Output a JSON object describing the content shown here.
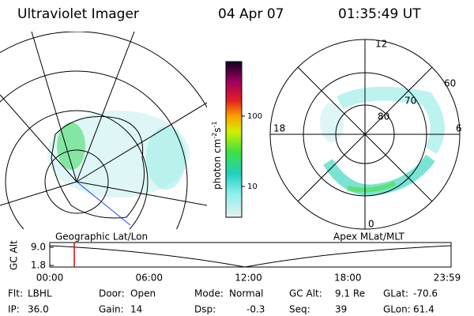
{
  "header": {
    "title": "Ultraviolet Imager",
    "date": "04 Apr 07",
    "time": "01:35:49 UT"
  },
  "colorbar": {
    "label": {
      "base": "photon cm",
      "exp1": "-2",
      "unit2": "s",
      "exp2": "-1"
    },
    "ticks": [
      "100",
      "10"
    ]
  },
  "polar": {
    "mlt_labels": [
      "12",
      "18",
      "6",
      "0"
    ],
    "lat_labels": [
      "60",
      "70",
      "80"
    ]
  },
  "panels": {
    "left_label": "Geographic Lat/Lon",
    "right_label": "Apex MLat/MLT"
  },
  "timeline": {
    "y_label": "GC Alt",
    "y_ticks": [
      "9.0",
      "1.8"
    ],
    "x_ticks": [
      "00:00",
      "06:00",
      "12:00",
      "18:00",
      "23:59"
    ]
  },
  "footer": {
    "rows": [
      [
        {
          "label": "Flt:",
          "value": "LBHL"
        },
        {
          "label": "Door:",
          "value": "Open"
        },
        {
          "label": "Mode:",
          "value": "Normal"
        },
        {
          "label": "GC Alt:",
          "value": "9.1 Re"
        },
        {
          "label": "GLat:",
          "value": "-70.6"
        }
      ],
      [
        {
          "label": "IP:",
          "value": "36.0"
        },
        {
          "label": "Gain:",
          "value": "14"
        },
        {
          "label": "Dsp:",
          "value": "-0.3"
        },
        {
          "label": "Seq:",
          "value": "39"
        },
        {
          "label": "GLon:",
          "value": "61.4"
        }
      ]
    ]
  }
}
